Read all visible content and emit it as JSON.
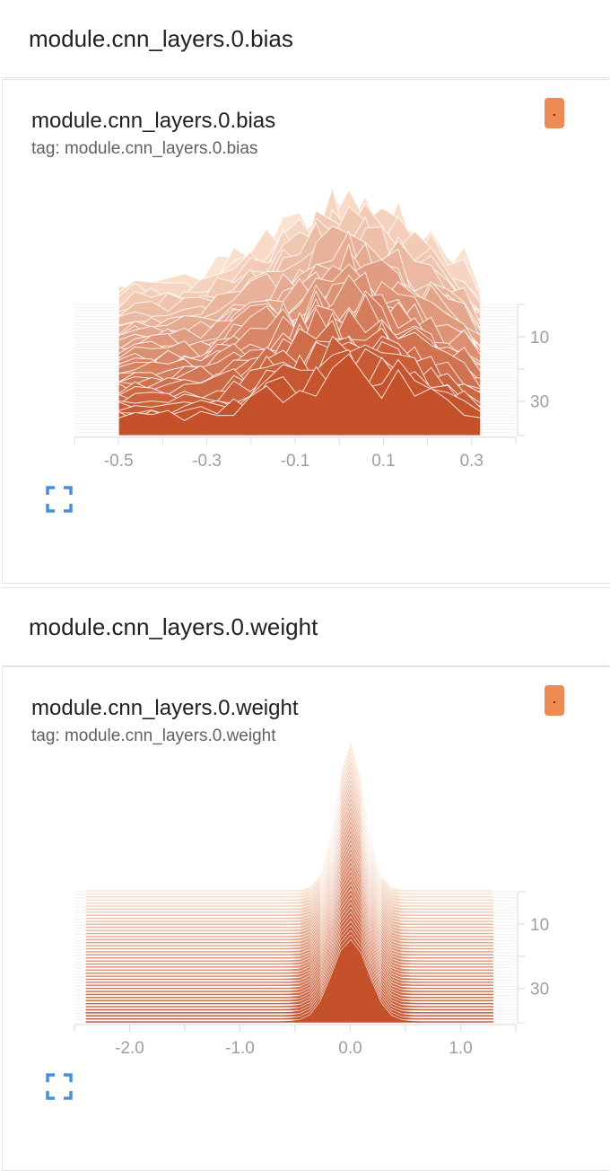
{
  "groups": [
    {
      "name": "module.cnn_layers.0.bias",
      "card": {
        "title": "module.cnn_layers.0.bias",
        "tag": "tag: module.cnn_layers.0.bias"
      }
    },
    {
      "name": "module.cnn_layers.0.weight",
      "card": {
        "title": "module.cnn_layers.0.weight",
        "tag": "tag: module.cnn_layers.0.weight"
      }
    }
  ],
  "colors": {
    "run": "#ee8a53",
    "dark": "#c4512a",
    "light": "#fbe3d2",
    "expand": "#4a90d9"
  },
  "chart_data": [
    {
      "type": "area",
      "title": "module.cnn_layers.0.bias",
      "x_ticks": [
        "-0.5",
        "-0.3",
        "-0.1",
        "0.1",
        "0.3"
      ],
      "x_tick_values": [
        -0.5,
        -0.3,
        -0.1,
        0.1,
        0.3
      ],
      "xlim": [
        -0.6,
        0.4
      ],
      "y_ticks": [
        "10",
        "30"
      ],
      "y_tick_values": [
        10,
        30
      ],
      "steps": [
        0,
        40
      ],
      "series_peak": {
        "x": 0.04,
        "relative_height": 1.0
      },
      "data_range": [
        -0.5,
        0.32
      ]
    },
    {
      "type": "area",
      "title": "module.cnn_layers.0.weight",
      "x_ticks": [
        "-2.0",
        "-1.0",
        "0.0",
        "1.0"
      ],
      "x_tick_values": [
        -2.0,
        -1.0,
        0.0,
        1.0
      ],
      "xlim": [
        -2.5,
        1.5
      ],
      "y_ticks": [
        "10",
        "30"
      ],
      "y_tick_values": [
        10,
        30
      ],
      "steps": [
        0,
        40
      ],
      "series_peak": {
        "x": 0.0,
        "relative_height": 1.0
      },
      "data_range": [
        -2.4,
        1.3
      ]
    }
  ]
}
